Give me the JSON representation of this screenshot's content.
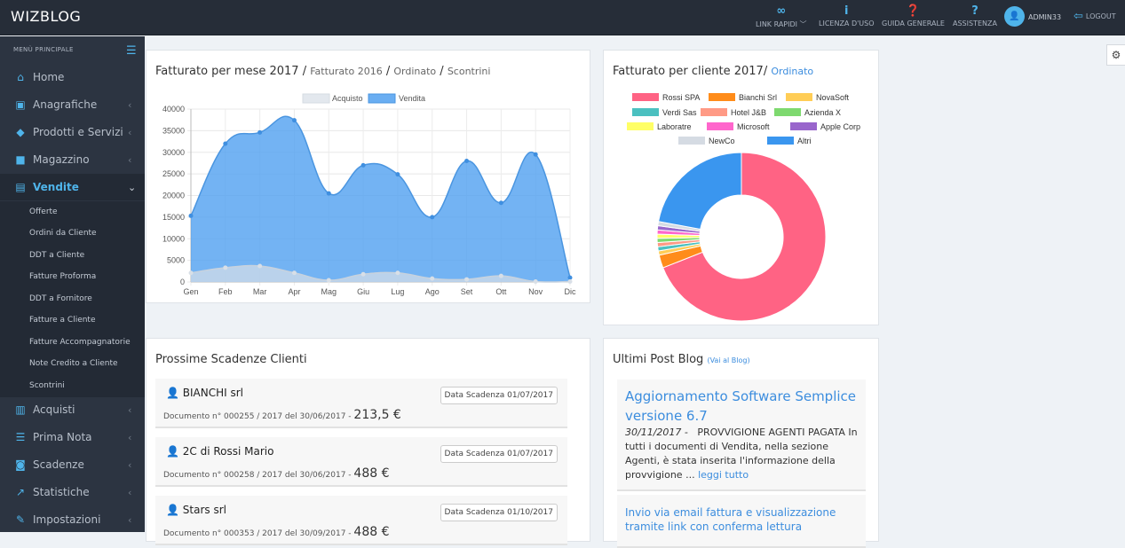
{
  "topbar": {
    "brand": "WIZBLOG",
    "nav": [
      {
        "icon": "link-icon",
        "label": "LINK RAPIDI ﹀"
      },
      {
        "icon": "info-icon",
        "label": "LICENZA D'USO"
      },
      {
        "icon": "help-circle-icon",
        "label": "GUIDA GENERALE"
      },
      {
        "icon": "question-icon",
        "label": "ASSISTENZA"
      }
    ],
    "user": "ADMIN33",
    "logout": "LOGOUT"
  },
  "sidebar": {
    "header": "MENÙ PRINCIPALE",
    "items": [
      {
        "label": "Home",
        "icon": "home-icon"
      },
      {
        "label": "Anagrafiche",
        "icon": "id-card-icon"
      },
      {
        "label": "Prodotti e Servizi",
        "icon": "tags-icon"
      },
      {
        "label": "Magazzino",
        "icon": "truck-icon"
      },
      {
        "label": "Vendite",
        "icon": "basket-icon"
      },
      {
        "label": "Acquisti",
        "icon": "barcode-icon"
      },
      {
        "label": "Prima Nota",
        "icon": "list-icon"
      },
      {
        "label": "Scadenze",
        "icon": "money-icon"
      },
      {
        "label": "Statistiche",
        "icon": "chart-icon"
      },
      {
        "label": "Impostazioni",
        "icon": "wrench-icon"
      }
    ],
    "subitems": [
      "Offerte",
      "Ordini da Cliente",
      "DDT a Cliente",
      "Fatture Proforma",
      "DDT a Fornitore",
      "Fatture a Cliente",
      "Fatture Accompagnatorie",
      "Note Credito a Cliente",
      "Scontrini"
    ]
  },
  "monthly": {
    "title": "Fatturato per mese 2017",
    "sep": "/",
    "links": [
      "Fatturato 2016",
      "Ordinato",
      "Scontrini"
    ]
  },
  "client": {
    "title": "Fatturato per cliente 2017/",
    "link": "Ordinato"
  },
  "scadenze": {
    "title": "Prossime Scadenze Clienti",
    "items": [
      {
        "name": "BIANCHI srl",
        "doc": "Documento n° 000255 / 2017 del 30/06/2017 -",
        "amount": "213,5 €",
        "badge": "Data Scadenza 01/07/2017"
      },
      {
        "name": "2C di Rossi Mario",
        "doc": "Documento n° 000258 / 2017 del 30/06/2017 -",
        "amount": "488 €",
        "badge": "Data Scadenza 01/07/2017"
      },
      {
        "name": "Stars srl",
        "doc": "Documento n° 000353 / 2017 del 30/09/2017 -",
        "amount": "488 €",
        "badge": "Data Scadenza 01/10/2017"
      }
    ]
  },
  "blog": {
    "title": "Ultimi Post Blog",
    "link": "(Vai al Blog)",
    "posts": [
      {
        "title": "Aggiornamento Software Semplice versione 6.7",
        "date": "30/11/2017 -",
        "body": "PROVVIGIONE AGENTI PAGATA In tutti i documenti di Vendita, nella sezione Agenti, è stata inserita l'informazione della provvigione ...",
        "more": "leggi tutto"
      },
      {
        "title": "Invio via email fattura e visualizzazione tramite link con conferma lettura"
      }
    ]
  },
  "chart_data": [
    {
      "type": "area",
      "categories": [
        "Gen",
        "Feb",
        "Mar",
        "Apr",
        "Mag",
        "Giu",
        "Lug",
        "Ago",
        "Set",
        "Ott",
        "Nov",
        "Dic"
      ],
      "series": [
        {
          "name": "Acquisto",
          "color": "#dde3ea",
          "values": [
            2100,
            3300,
            3700,
            2100,
            400,
            1800,
            2100,
            800,
            600,
            1400,
            100,
            100
          ]
        },
        {
          "name": "Vendita",
          "color": "#5ea8f0",
          "values": [
            15300,
            32000,
            34600,
            37400,
            20500,
            27000,
            24900,
            15000,
            28000,
            18300,
            29500,
            1000
          ]
        }
      ],
      "yticks": [
        "0",
        "5000",
        "10000",
        "15000",
        "20000",
        "25000",
        "30000",
        "35000",
        "40000"
      ],
      "ylim": [
        0,
        40000
      ],
      "legend": "top",
      "grid": true
    },
    {
      "type": "pie",
      "donut": true,
      "legend": "top",
      "labels": [
        "Rossi SPA",
        "Bianchi Srl",
        "NovaSoft",
        "Verdi Sas",
        "Hotel J&B",
        "Azienda X",
        "Laboratre",
        "Microsoft",
        "Apple Corp",
        "NewCo",
        "Altri"
      ],
      "colors": [
        "#ff6384",
        "#ff8c1a",
        "#ffcd56",
        "#4bc0c0",
        "#ff9a85",
        "#7ed96f",
        "#ffff66",
        "#ff66cc",
        "#9966cc",
        "#d5dbe3",
        "#3a96ef"
      ],
      "values": [
        69,
        2.5,
        0.8,
        0.8,
        0.8,
        0.8,
        0.8,
        0.8,
        0.8,
        0.8,
        22.1
      ]
    }
  ]
}
